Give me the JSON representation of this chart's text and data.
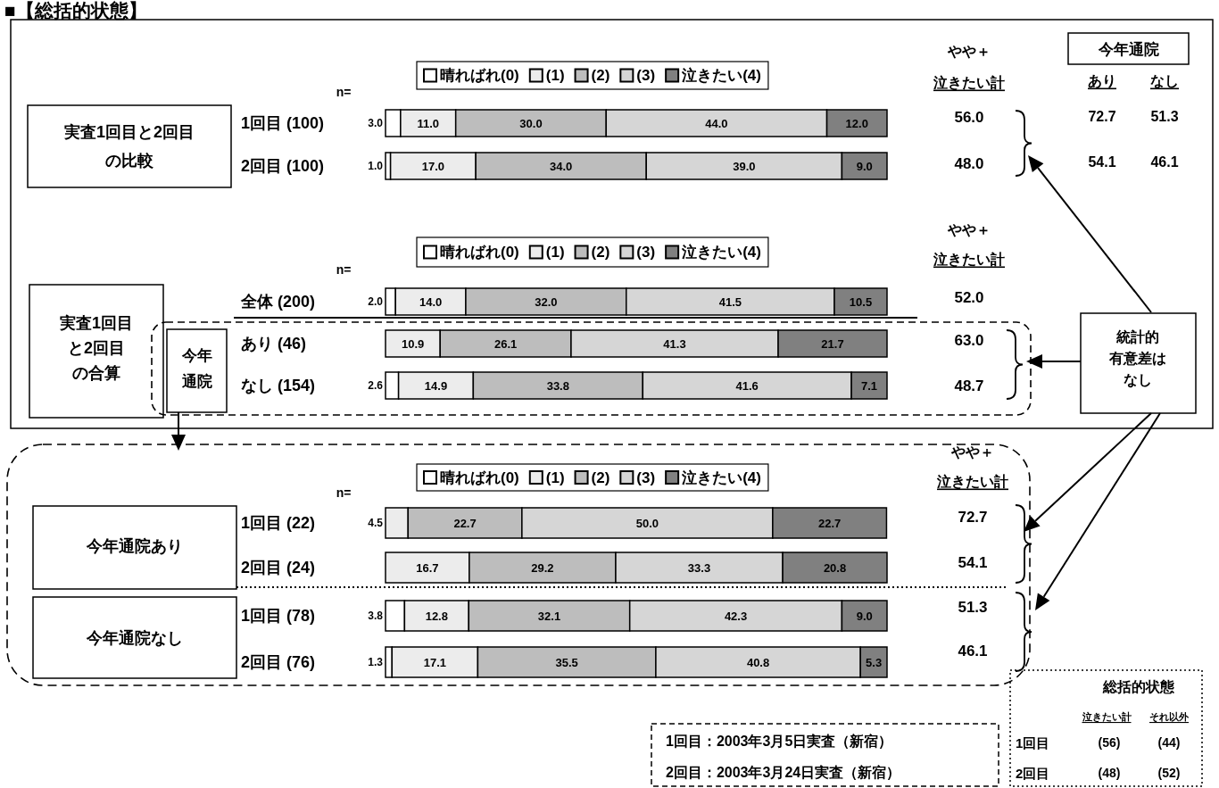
{
  "chart_data": [
    {
      "type": "bar",
      "orientation": "horizontal",
      "stacked": true,
      "title": "■【総括的状態】",
      "legend": "top",
      "categories": [
        "1回目 (100)",
        "2回目 (100)"
      ],
      "series": [
        {
          "name": "晴ればれ(0)",
          "color": "#ffffff",
          "values": [
            3.0,
            1.0
          ],
          "value_labels": [
            "3.0",
            "1.0"
          ]
        },
        {
          "name": "(1)",
          "color": "#ececec",
          "values": [
            11.0,
            17.0
          ],
          "value_labels": [
            "11.0",
            "17.0"
          ]
        },
        {
          "name": "(2)",
          "color": "#bdbdbd",
          "values": [
            30.0,
            34.0
          ],
          "value_labels": [
            "30.0",
            "34.0"
          ]
        },
        {
          "name": "(3)",
          "color": "#d6d6d6",
          "values": [
            44.0,
            39.0
          ],
          "value_labels": [
            "44.0",
            "39.0"
          ]
        },
        {
          "name": "泣きたい(4)",
          "color": "#808080",
          "values": [
            12.0,
            9.0
          ],
          "value_labels": [
            "12.0",
            "9.0"
          ]
        }
      ],
      "annotations": [
        "実査1回目と2回目",
        "の比較",
        "n=",
        "やや＋",
        "泣きたい計",
        "56.0",
        "48.0",
        "今年通院",
        "あり",
        "なし",
        "72.7",
        "51.3",
        "54.1",
        "46.1"
      ]
    },
    {
      "type": "bar",
      "orientation": "horizontal",
      "stacked": true,
      "legend": "top",
      "categories": [
        "全体 (200)",
        "あり (46)",
        "なし (154)"
      ],
      "series": [
        {
          "name": "晴ればれ(0)",
          "color": "#ffffff",
          "values": [
            2.0,
            0,
            2.6
          ],
          "value_labels": [
            "2.0",
            null,
            "2.6"
          ]
        },
        {
          "name": "(1)",
          "color": "#ececec",
          "values": [
            14.0,
            10.9,
            14.9
          ],
          "value_labels": [
            "14.0",
            "10.9",
            "14.9"
          ]
        },
        {
          "name": "(2)",
          "color": "#bdbdbd",
          "values": [
            32.0,
            26.1,
            33.8
          ],
          "value_labels": [
            "32.0",
            "26.1",
            "33.8"
          ]
        },
        {
          "name": "(3)",
          "color": "#d6d6d6",
          "values": [
            41.5,
            41.3,
            41.6
          ],
          "value_labels": [
            "41.5",
            "41.3",
            "41.6"
          ]
        },
        {
          "name": "泣きたい(4)",
          "color": "#808080",
          "values": [
            10.5,
            21.7,
            7.1
          ],
          "value_labels": [
            "10.5",
            "21.7",
            "7.1"
          ]
        }
      ],
      "annotations": [
        "実査1回目",
        "と2回目",
        "の合算",
        "今年",
        "通院",
        "n=",
        "やや＋",
        "泣きたい計",
        "52.0",
        "63.0",
        "48.7",
        "統計的",
        "有意差は",
        "なし"
      ]
    },
    {
      "type": "bar",
      "orientation": "horizontal",
      "stacked": true,
      "legend": "top",
      "categories": [
        "1回目 (22)",
        "2回目 (24)",
        "1回目 (78)",
        "2回目 (76)"
      ],
      "series": [
        {
          "name": "晴ればれ(0)",
          "color": "#ffffff",
          "values": [
            0,
            0,
            3.8,
            1.3
          ],
          "value_labels": [
            null,
            null,
            "3.8",
            "1.3"
          ]
        },
        {
          "name": "(1)",
          "color": "#ececec",
          "values": [
            4.5,
            16.7,
            12.8,
            17.1
          ],
          "value_labels": [
            "4.5",
            "16.7",
            "12.8",
            "17.1"
          ]
        },
        {
          "name": "(2)",
          "color": "#bdbdbd",
          "values": [
            22.7,
            29.2,
            32.1,
            35.5
          ],
          "value_labels": [
            "22.7",
            "29.2",
            "32.1",
            "35.5"
          ]
        },
        {
          "name": "(3)",
          "color": "#d6d6d6",
          "values": [
            50.0,
            33.3,
            42.3,
            40.8
          ],
          "value_labels": [
            "50.0",
            "33.3",
            "42.3",
            "40.8"
          ]
        },
        {
          "name": "泣きたい(4)",
          "color": "#808080",
          "values": [
            22.7,
            20.8,
            9.0,
            5.3
          ],
          "value_labels": [
            "22.7",
            "20.8",
            "9.0",
            "5.3"
          ]
        }
      ],
      "annotations": [
        "n=",
        "やや＋",
        "泣きたい計",
        "72.7",
        "54.1",
        "51.3",
        "46.1",
        "今年通院あり",
        "今年通院なし",
        "1回目：2003年3月5日実査（新宿）",
        "2回目：2003年3月24日実査（新宿）",
        "総括的状態",
        "泣きたい計",
        "それ以外",
        "1回目",
        "(56)",
        "(44)",
        "2回目",
        "(48)",
        "(52)"
      ]
    }
  ]
}
